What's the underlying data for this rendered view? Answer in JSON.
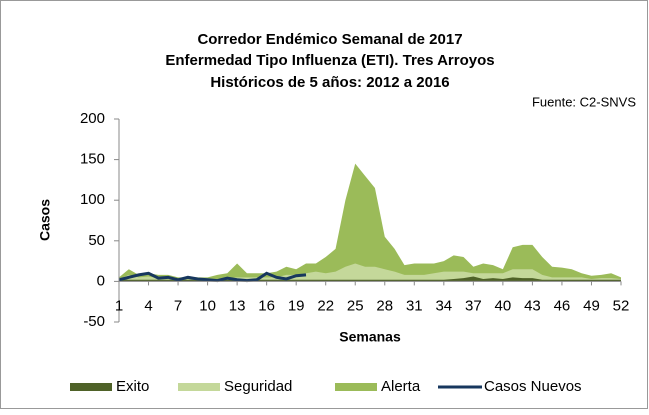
{
  "chart_data": {
    "type": "area",
    "title": "Corredor Endémico Semanal de 2017",
    "subtitle": "Enfermedad Tipo Influenza (ETI). Tres Arroyos",
    "subtitle2": "Históricos de 5 años: 2012 a 2016",
    "source": "Fuente: C2-SNVS",
    "x_label": "Semanas",
    "y_label": "Casos",
    "x": [
      1,
      2,
      3,
      4,
      5,
      6,
      7,
      8,
      9,
      10,
      11,
      12,
      13,
      14,
      15,
      16,
      17,
      18,
      19,
      20,
      21,
      22,
      23,
      24,
      25,
      26,
      27,
      28,
      29,
      30,
      31,
      32,
      33,
      34,
      35,
      36,
      37,
      38,
      39,
      40,
      41,
      42,
      43,
      44,
      45,
      46,
      47,
      48,
      49,
      50,
      51,
      52
    ],
    "xlim": [
      1,
      52
    ],
    "xticks": [
      1,
      4,
      7,
      10,
      13,
      16,
      19,
      22,
      25,
      28,
      31,
      34,
      37,
      40,
      43,
      46,
      49,
      52
    ],
    "ylim": [
      -50,
      200
    ],
    "yticks": [
      -50,
      0,
      50,
      100,
      150,
      200
    ],
    "series": [
      {
        "name": "Alerta",
        "color": "#9bbb59",
        "kind": "area",
        "values": [
          5,
          15,
          8,
          10,
          8,
          8,
          5,
          5,
          5,
          5,
          8,
          10,
          22,
          10,
          10,
          10,
          12,
          18,
          15,
          22,
          22,
          30,
          40,
          100,
          145,
          130,
          115,
          55,
          40,
          20,
          22,
          22,
          22,
          25,
          32,
          30,
          18,
          22,
          20,
          15,
          42,
          45,
          45,
          30,
          18,
          17,
          15,
          10,
          7,
          8,
          10,
          5
        ]
      },
      {
        "name": "Seguridad",
        "color": "#c4d89a",
        "kind": "area",
        "values": [
          3,
          8,
          5,
          6,
          4,
          4,
          3,
          3,
          3,
          3,
          3,
          4,
          5,
          5,
          5,
          5,
          5,
          8,
          8,
          10,
          12,
          10,
          12,
          18,
          22,
          18,
          18,
          15,
          12,
          8,
          8,
          8,
          10,
          12,
          12,
          12,
          10,
          10,
          10,
          10,
          15,
          15,
          15,
          8,
          5,
          5,
          5,
          5,
          3,
          4,
          4,
          3
        ]
      },
      {
        "name": "Exito",
        "color": "#4f6228",
        "kind": "area",
        "values": [
          2,
          2,
          2,
          2,
          2,
          2,
          2,
          2,
          2,
          2,
          2,
          2,
          2,
          2,
          2,
          2,
          2,
          2,
          2,
          2,
          2,
          2,
          2,
          2,
          2,
          2,
          2,
          2,
          2,
          2,
          2,
          2,
          2,
          2,
          3,
          4,
          6,
          3,
          4,
          3,
          5,
          4,
          4,
          2,
          2,
          2,
          2,
          2,
          2,
          2,
          2,
          2
        ]
      },
      {
        "name": "Casos Nuevos",
        "color": "#17375e",
        "kind": "line",
        "values": [
          2,
          5,
          8,
          10,
          4,
          5,
          2,
          5,
          3,
          2,
          1,
          4,
          2,
          1,
          2,
          10,
          5,
          3,
          7,
          8,
          null,
          null,
          null,
          null,
          null,
          null,
          null,
          null,
          null,
          null,
          null,
          null,
          null,
          null,
          null,
          null,
          null,
          null,
          null,
          null,
          null,
          null,
          null,
          null,
          null,
          null,
          null,
          null,
          null,
          null,
          null,
          null
        ]
      }
    ]
  }
}
